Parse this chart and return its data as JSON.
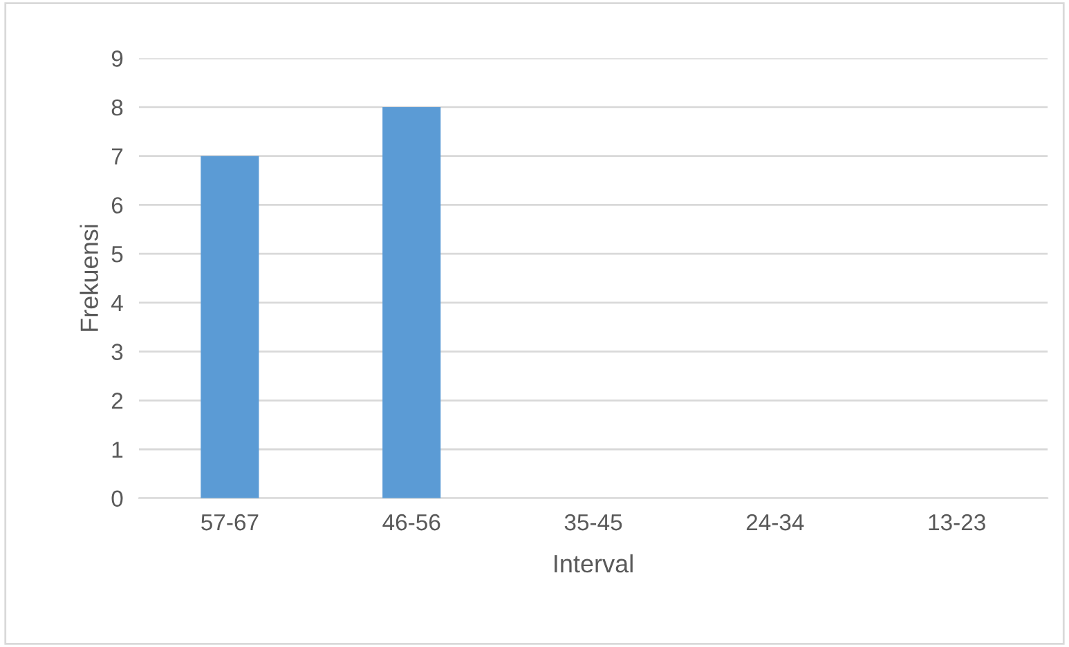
{
  "chart_data": {
    "type": "bar",
    "xlabel": "Interval",
    "ylabel": "Frekuensi",
    "categories": [
      "57-67",
      "46-56",
      "35-45",
      "24-34",
      "13-23"
    ],
    "values": [
      7,
      8,
      0,
      0,
      0
    ],
    "color": "#5b9bd5",
    "ylim": [
      0,
      9
    ],
    "yticks": [
      0,
      1,
      2,
      3,
      4,
      5,
      6,
      7,
      8,
      9
    ],
    "grid": "y"
  }
}
